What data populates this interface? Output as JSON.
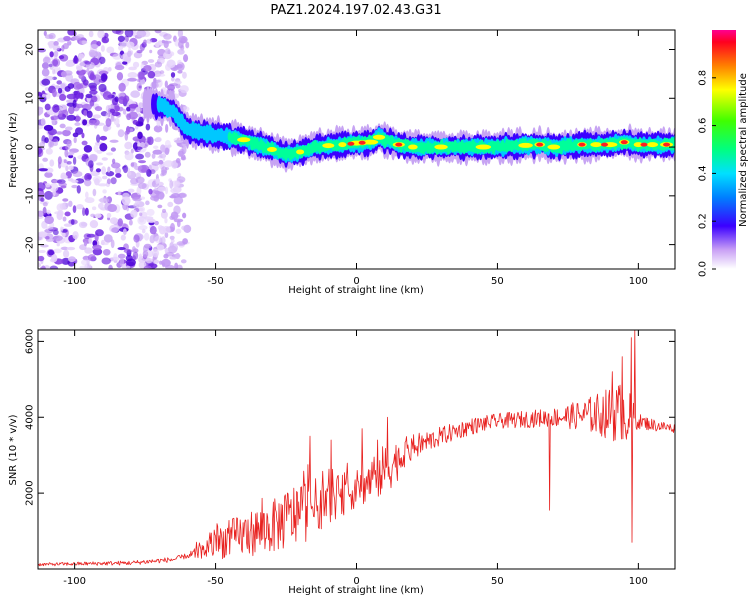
{
  "figure_title": "PAZ1.2024.197.02.43.G31",
  "chart_data": [
    {
      "type": "heatmap",
      "xlabel": "Height of straight line (km)",
      "ylabel": "Frequency (Hz)",
      "xlim": [
        -113,
        113
      ],
      "ylim": [
        -25,
        24
      ],
      "xticks": [
        -100,
        -50,
        0,
        50,
        100
      ],
      "yticks": [
        -20,
        -10,
        0,
        10,
        20
      ],
      "ridge": {
        "x": [
          -113,
          -80,
          -70,
          -65,
          -60,
          -55,
          -50,
          -45,
          -40,
          -35,
          -30,
          -25,
          -20,
          -15,
          -10,
          -5,
          0,
          5,
          8,
          10,
          15,
          20,
          30,
          50,
          65,
          70,
          80,
          90,
          95,
          100,
          113
        ],
        "y": [
          9.5,
          9.5,
          8.5,
          7.5,
          3.5,
          3,
          2.5,
          2,
          1.5,
          0.5,
          -0.5,
          -1.5,
          -1,
          0,
          0.3,
          0.5,
          0.8,
          1,
          2,
          1.5,
          0.5,
          0,
          0,
          0,
          0.5,
          0,
          0.5,
          0.5,
          1,
          0.5,
          0.5
        ]
      },
      "noise_region_x": [
        -113,
        -60
      ],
      "colorbar": {
        "label": "Normalized spectral amplitude",
        "range": [
          0,
          1
        ],
        "ticks": [
          0.0,
          0.2,
          0.4,
          0.6,
          0.8
        ]
      }
    },
    {
      "type": "line",
      "xlabel": "Height of straight line (km)",
      "ylabel": "SNR (10 * v/v)",
      "xlim": [
        -113,
        113
      ],
      "ylim": [
        0,
        6300
      ],
      "xticks": [
        -100,
        -50,
        0,
        50,
        100
      ],
      "yticks": [
        2000,
        4000,
        6000
      ],
      "color": "#e8211f",
      "envelope": {
        "x": [
          -113,
          -80,
          -65,
          -55,
          -50,
          -40,
          -30,
          -20,
          -10,
          0,
          10,
          20,
          30,
          40,
          50,
          60,
          70,
          80,
          90,
          95,
          100,
          105,
          113
        ],
        "y": [
          120,
          160,
          250,
          450,
          700,
          900,
          1100,
          1500,
          1800,
          2100,
          2600,
          3200,
          3500,
          3750,
          3900,
          3950,
          4000,
          4050,
          4100,
          4100,
          3900,
          3800,
          3700
        ]
      },
      "noise_amplitude": {
        "x": [
          -113,
          -60,
          -55,
          -50,
          -30,
          -20,
          -10,
          0,
          10,
          20,
          30,
          50,
          70,
          80,
          90,
          95,
          100,
          113
        ],
        "y": [
          40,
          70,
          200,
          450,
          700,
          900,
          600,
          500,
          700,
          350,
          250,
          200,
          250,
          400,
          700,
          900,
          200,
          120
        ]
      },
      "spikes": [
        {
          "x": -16.5,
          "y": 3500
        },
        {
          "x": -9,
          "y": 3400
        },
        {
          "x": 2,
          "y": 3700
        },
        {
          "x": 11,
          "y": 4000
        },
        {
          "x": 68.5,
          "y": 1550
        },
        {
          "x": 90.8,
          "y": 5200
        },
        {
          "x": 94.3,
          "y": 5600
        },
        {
          "x": 97.5,
          "y": 6100
        },
        {
          "x": 98.7,
          "y": 6300
        },
        {
          "x": 97.8,
          "y": 700
        }
      ]
    }
  ]
}
